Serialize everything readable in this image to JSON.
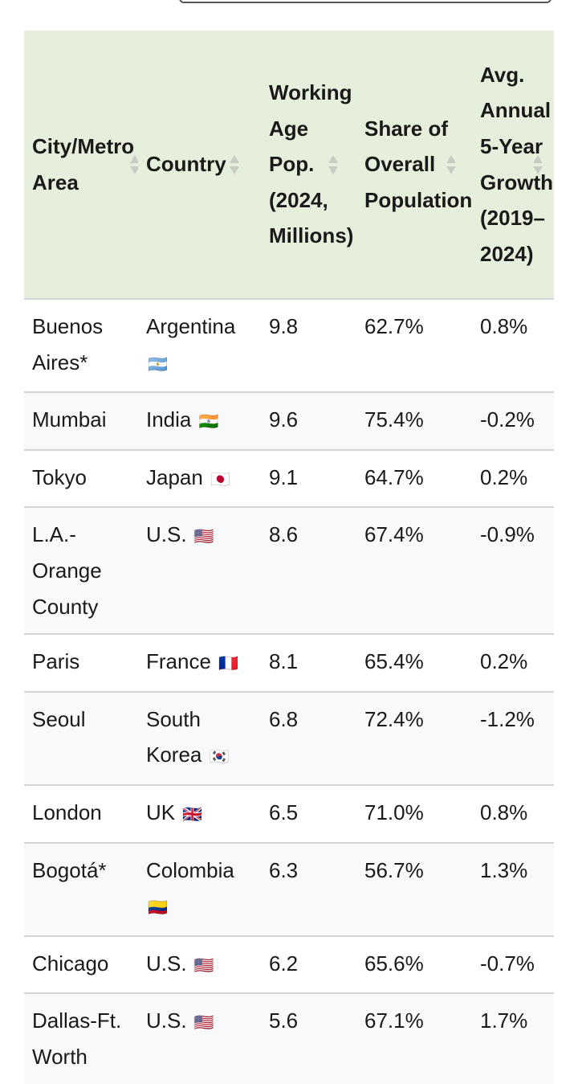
{
  "table": {
    "headers": [
      {
        "label": "City/Metro Area"
      },
      {
        "label": "Country"
      },
      {
        "label": "Working Age Pop. (2024, Millions)"
      },
      {
        "label": "Share of Overall Population"
      },
      {
        "label": "Avg. Annual 5-Year Growth (2019–2024)"
      }
    ],
    "rows": [
      {
        "city": "Buenos Aires*",
        "country": "Argentina",
        "flag": "🇦🇷",
        "pop": "9.8",
        "share": "62.7%",
        "growth": "0.8%"
      },
      {
        "city": "Mumbai",
        "country": "India",
        "flag": "🇮🇳",
        "pop": "9.6",
        "share": "75.4%",
        "growth": "-0.2%"
      },
      {
        "city": "Tokyo",
        "country": "Japan",
        "flag": "🇯🇵",
        "pop": "9.1",
        "share": "64.7%",
        "growth": "0.2%"
      },
      {
        "city": "L.A.-Orange County",
        "country": "U.S.",
        "flag": "🇺🇸",
        "pop": "8.6",
        "share": "67.4%",
        "growth": "-0.9%"
      },
      {
        "city": "Paris",
        "country": "France",
        "flag": "🇫🇷",
        "pop": "8.1",
        "share": "65.4%",
        "growth": "0.2%"
      },
      {
        "city": "Seoul",
        "country": "South Korea",
        "flag": "🇰🇷",
        "pop": "6.8",
        "share": "72.4%",
        "growth": "-1.2%"
      },
      {
        "city": "London",
        "country": "UK",
        "flag": "🇬🇧",
        "pop": "6.5",
        "share": "71.0%",
        "growth": "0.8%"
      },
      {
        "city": "Bogotá*",
        "country": "Colombia",
        "flag": "🇨🇴",
        "pop": "6.3",
        "share": "56.7%",
        "growth": "1.3%"
      },
      {
        "city": "Chicago",
        "country": "U.S.",
        "flag": "🇺🇸",
        "pop": "6.2",
        "share": "65.6%",
        "growth": "-0.7%"
      },
      {
        "city": "Dallas-Ft. Worth",
        "country": "U.S.",
        "flag": "🇺🇸",
        "pop": "5.6",
        "share": "67.1%",
        "growth": "1.7%"
      }
    ]
  },
  "colors": {
    "header_bg": "#e5efdc",
    "row_alt_bg": "#f8f9fa",
    "border": "#d4d4d4"
  }
}
